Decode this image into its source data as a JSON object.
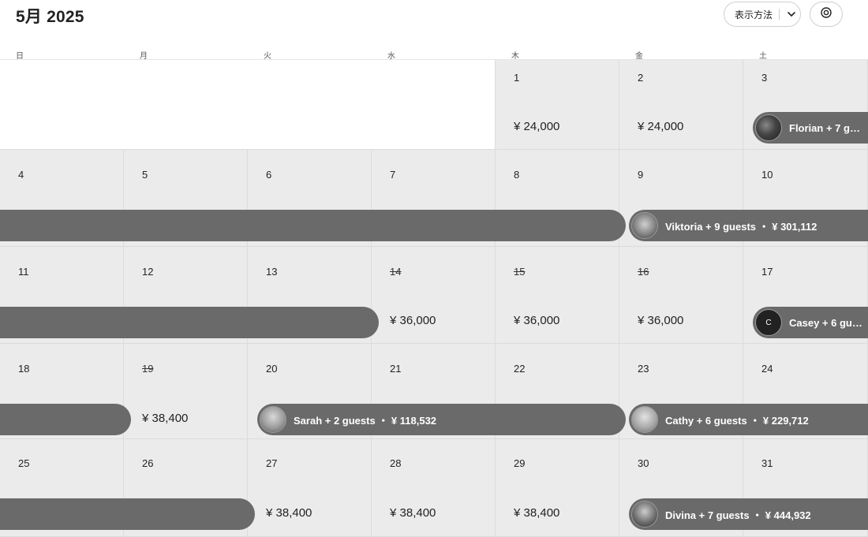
{
  "header": {
    "title": "5月 2025",
    "view_label": "表示方法"
  },
  "weekdays": [
    "日",
    "月",
    "火",
    "水",
    "木",
    "金",
    "土"
  ],
  "days": [
    {
      "num": "1",
      "price": "¥ 24,000"
    },
    {
      "num": "2",
      "price": "¥ 24,000"
    },
    {
      "num": "3"
    },
    {
      "num": "4"
    },
    {
      "num": "5"
    },
    {
      "num": "6"
    },
    {
      "num": "7"
    },
    {
      "num": "8"
    },
    {
      "num": "9"
    },
    {
      "num": "10"
    },
    {
      "num": "11"
    },
    {
      "num": "12"
    },
    {
      "num": "13"
    },
    {
      "num": "14",
      "blocked": true,
      "price": "¥ 36,000"
    },
    {
      "num": "15",
      "blocked": true,
      "price": "¥ 36,000"
    },
    {
      "num": "16",
      "blocked": true,
      "price": "¥ 36,000"
    },
    {
      "num": "17"
    },
    {
      "num": "18"
    },
    {
      "num": "19",
      "blocked": true,
      "price": "¥ 38,400"
    },
    {
      "num": "20"
    },
    {
      "num": "21"
    },
    {
      "num": "22"
    },
    {
      "num": "23"
    },
    {
      "num": "24"
    },
    {
      "num": "25"
    },
    {
      "num": "26"
    },
    {
      "num": "27",
      "price": "¥ 38,400"
    },
    {
      "num": "28",
      "price": "¥ 38,400"
    },
    {
      "num": "29",
      "price": "¥ 38,400"
    },
    {
      "num": "30"
    },
    {
      "num": "31"
    }
  ],
  "reservations": [
    {
      "label": "Florian + 7 gu…",
      "avatar": "photo1"
    },
    {
      "label": "Viktoria + 9 guests ・ ¥ 301,112",
      "avatar": "photo2"
    },
    {
      "label": "Casey + 6 gue…",
      "avatar": "initial",
      "initial": "C"
    },
    {
      "label": "Sarah + 2 guests ・ ¥ 118,532",
      "avatar": "photo3"
    },
    {
      "label": "Cathy + 6 guests ・ ¥ 229,712",
      "avatar": "photo4"
    },
    {
      "label": "Divina + 7 guests ・ ¥ 444,932",
      "avatar": "photo5"
    }
  ],
  "colors": {
    "reservation_bar": "#6a6a6a",
    "day_bg": "#ebebeb",
    "empty_bg": "#ffffff"
  },
  "icons": {
    "view_dropdown": "chevron-down-icon",
    "settings": "settings-icon"
  }
}
